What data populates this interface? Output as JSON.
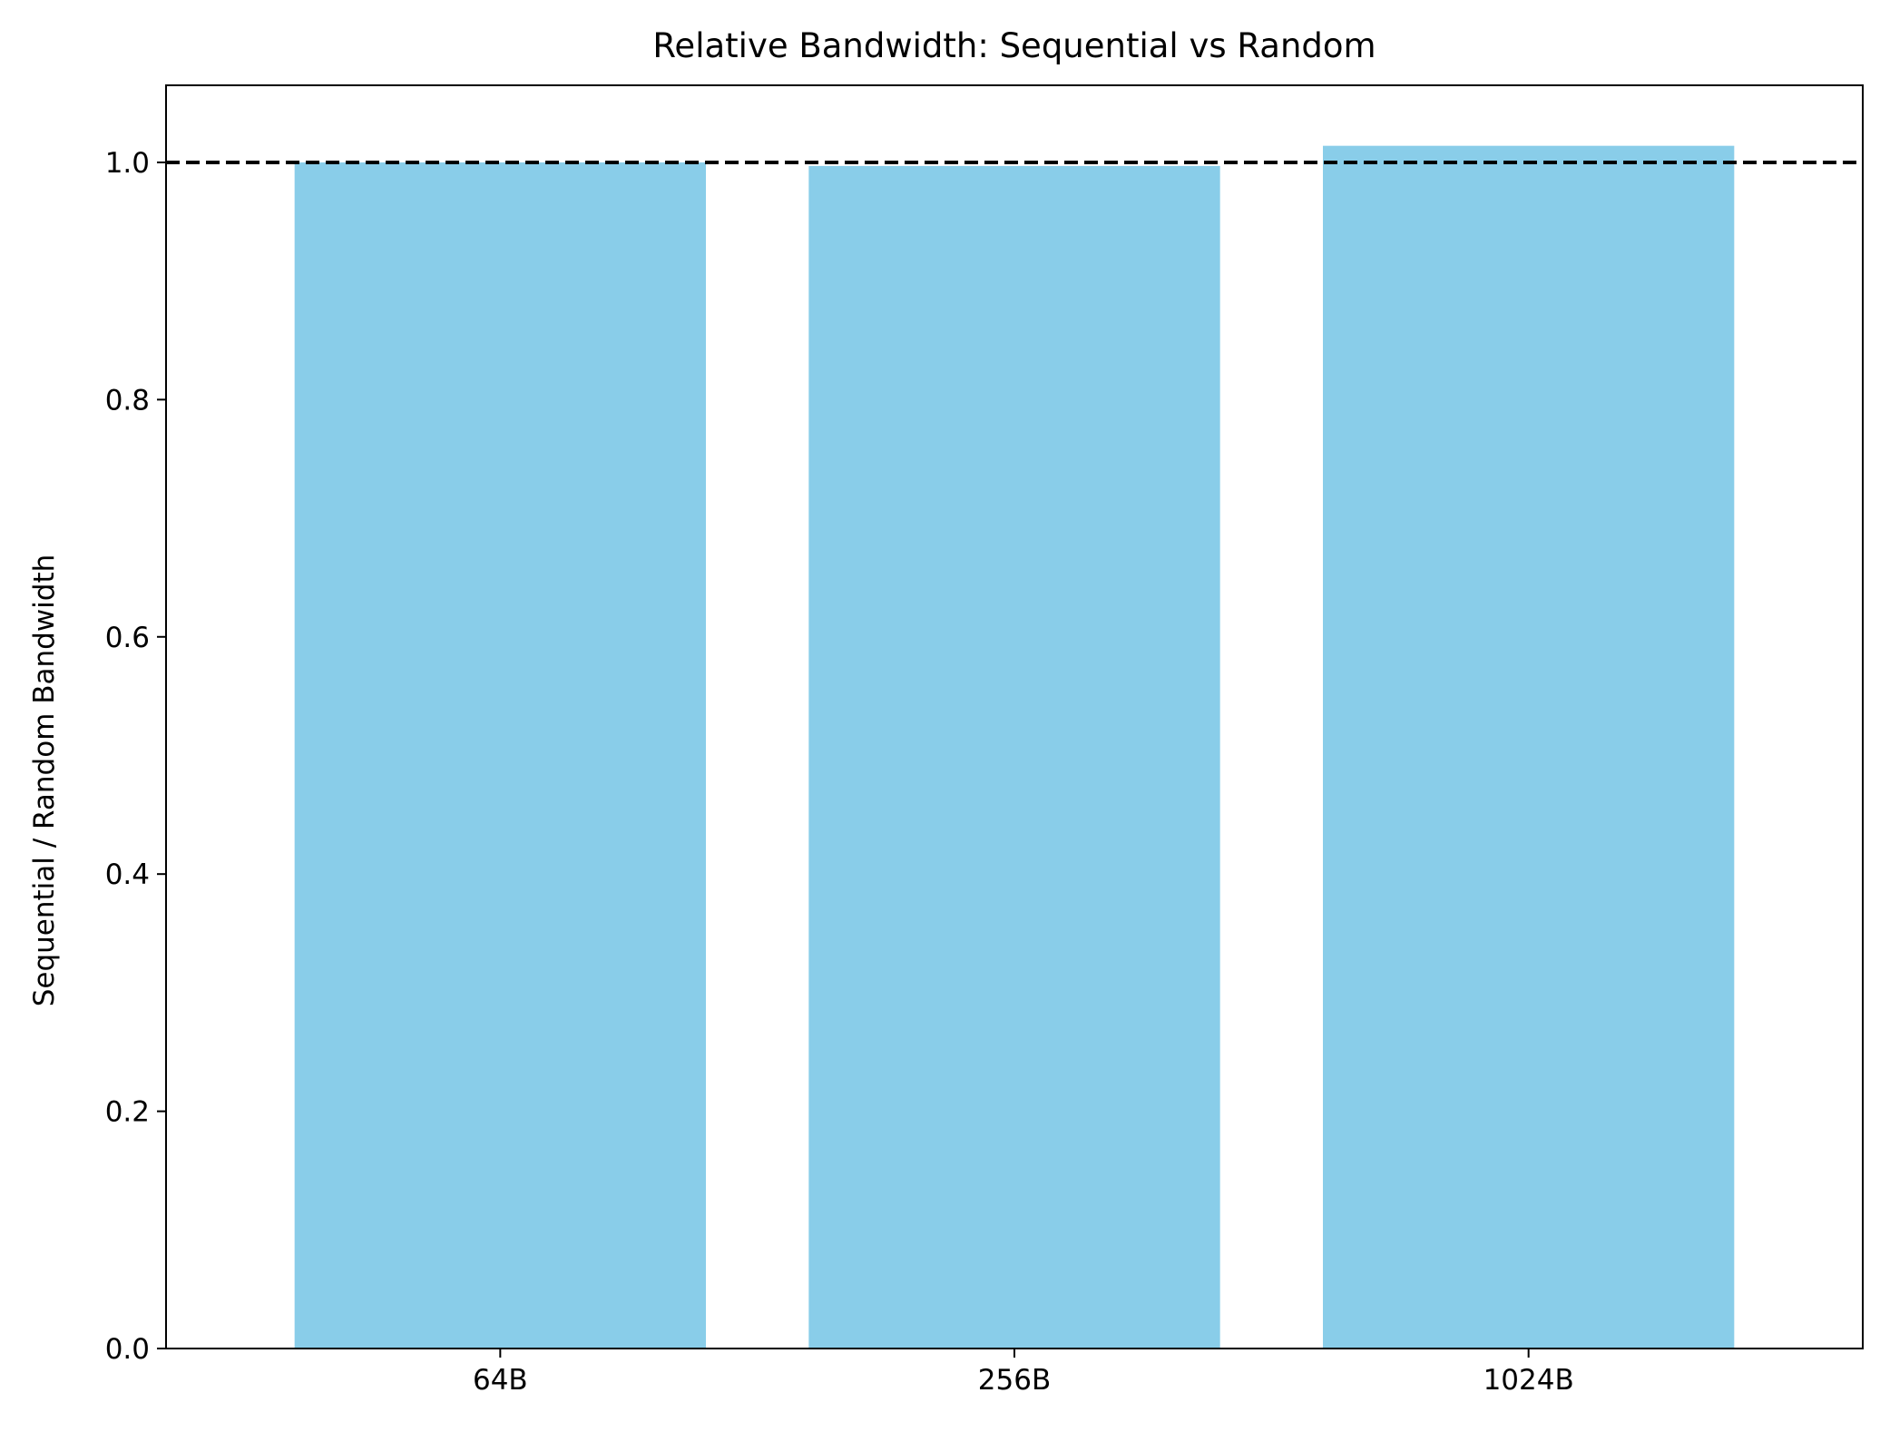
{
  "chart_data": {
    "type": "bar",
    "title": "Relative Bandwidth: Sequential vs Random",
    "xlabel": "",
    "ylabel": "Sequential / Random Bandwidth",
    "categories": [
      "64B",
      "256B",
      "1024B"
    ],
    "values": [
      1.0,
      0.997,
      1.014
    ],
    "ylim": [
      0,
      1.065
    ],
    "yticks": [
      "0.0",
      "0.2",
      "0.4",
      "0.6",
      "0.8",
      "1.0"
    ],
    "reference_line": {
      "y": 1.0,
      "style": "dashed",
      "color": "#000000"
    },
    "bar_color": "#89CDE9",
    "grid": false,
    "legend": "none"
  }
}
